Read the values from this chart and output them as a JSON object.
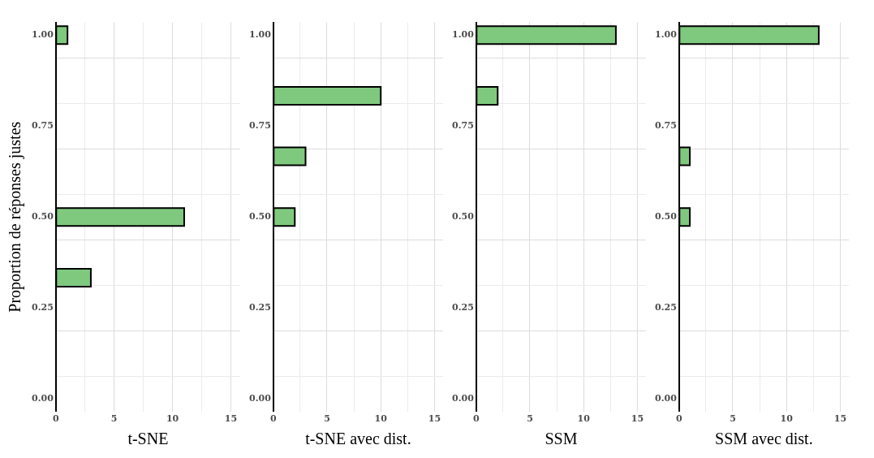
{
  "chart_data": [
    {
      "type": "bar",
      "orientation": "horizontal",
      "ylabel": "Proportion de réponses justes",
      "xlabel": "t-SNE",
      "x": [
        0.333,
        0.5,
        1
      ],
      "values": [
        3,
        11,
        1
      ],
      "color": "#7fc97f",
      "xlim": [
        0,
        15.8
      ],
      "xticks": [
        0,
        {
          "value": 2.5,
          "label": null
        },
        5,
        {
          "value": 7.5,
          "label": null
        },
        10,
        {
          "value": 12.5,
          "label": null
        },
        15
      ],
      "ylim": [
        -0.035,
        1.035
      ],
      "yticks": [
        {
          "value": 0,
          "label": "0.00"
        },
        {
          "value": 0.25,
          "label": "0.25"
        },
        {
          "value": 0.5,
          "label": "0.50"
        },
        {
          "value": 0.75,
          "label": "0.75"
        },
        {
          "value": 1,
          "label": "1.00"
        }
      ],
      "grid": true
    },
    {
      "type": "bar",
      "orientation": "horizontal",
      "xlabel": "t-SNE avec dist.",
      "x": [
        0.5,
        0.667,
        0.833
      ],
      "values": [
        2,
        3,
        10
      ],
      "color": "#7fc97f",
      "xlim": [
        0,
        15.8
      ],
      "xticks": [
        0,
        {
          "value": 2.5,
          "label": null
        },
        5,
        {
          "value": 7.5,
          "label": null
        },
        10,
        {
          "value": 12.5,
          "label": null
        },
        15
      ],
      "ylim": [
        -0.035,
        1.035
      ],
      "yticks": [
        {
          "value": 0,
          "label": "0.00"
        },
        {
          "value": 0.25,
          "label": "0.25"
        },
        {
          "value": 0.5,
          "label": "0.50"
        },
        {
          "value": 0.75,
          "label": "0.75"
        },
        {
          "value": 1,
          "label": "1.00"
        }
      ],
      "grid": true
    },
    {
      "type": "bar",
      "orientation": "horizontal",
      "xlabel": "SSM",
      "x": [
        0.833,
        1
      ],
      "values": [
        2,
        13
      ],
      "color": "#7fc97f",
      "xlim": [
        0,
        15.8
      ],
      "xticks": [
        0,
        {
          "value": 2.5,
          "label": null
        },
        5,
        {
          "value": 7.5,
          "label": null
        },
        10,
        {
          "value": 12.5,
          "label": null
        },
        15
      ],
      "ylim": [
        -0.035,
        1.035
      ],
      "yticks": [
        {
          "value": 0,
          "label": "0.00"
        },
        {
          "value": 0.25,
          "label": "0.25"
        },
        {
          "value": 0.5,
          "label": "0.50"
        },
        {
          "value": 0.75,
          "label": "0.75"
        },
        {
          "value": 1,
          "label": "1.00"
        }
      ],
      "grid": true
    },
    {
      "type": "bar",
      "orientation": "horizontal",
      "xlabel": "SSM avec dist.",
      "x": [
        0.5,
        0.667,
        1
      ],
      "values": [
        1,
        1,
        13
      ],
      "color": "#7fc97f",
      "xlim": [
        0,
        15.8
      ],
      "xticks": [
        0,
        {
          "value": 2.5,
          "label": null
        },
        5,
        {
          "value": 7.5,
          "label": null
        },
        10,
        {
          "value": 12.5,
          "label": null
        },
        15
      ],
      "ylim": [
        -0.035,
        1.035
      ],
      "yticks": [
        {
          "value": 0,
          "label": "0.00"
        },
        {
          "value": 0.25,
          "label": "0.25"
        },
        {
          "value": 0.5,
          "label": "0.50"
        },
        {
          "value": 0.75,
          "label": "0.75"
        },
        {
          "value": 1,
          "label": "1.00"
        }
      ],
      "grid": true
    }
  ]
}
